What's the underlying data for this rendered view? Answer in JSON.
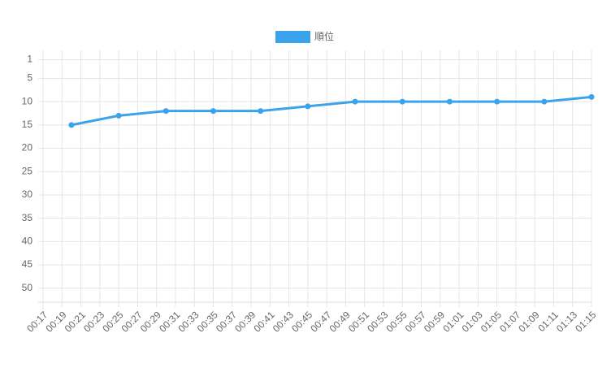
{
  "chart_data": {
    "type": "line",
    "reverse_y": true,
    "x": [
      "00:20",
      "00:25",
      "00:30",
      "00:35",
      "00:40",
      "00:45",
      "00:50",
      "00:55",
      "01:00",
      "01:05",
      "01:10",
      "01:15"
    ],
    "series": [
      {
        "name": "順位",
        "color": "#3ba3ec",
        "values": [
          15,
          13,
          12,
          12,
          12,
          11,
          10,
          10,
          10,
          10,
          10,
          9
        ]
      }
    ],
    "xlim": [
      "00:17",
      "01:15"
    ],
    "xticks": [
      "00:17",
      "00:19",
      "00:21",
      "00:23",
      "00:25",
      "00:27",
      "00:29",
      "00:31",
      "00:33",
      "00:35",
      "00:37",
      "00:39",
      "00:41",
      "00:43",
      "00:45",
      "00:47",
      "00:49",
      "00:51",
      "00:53",
      "00:55",
      "00:57",
      "00:59",
      "01:01",
      "01:03",
      "01:05",
      "01:07",
      "01:09",
      "01:11",
      "01:13",
      "01:15"
    ],
    "ylim": [
      -1,
      53
    ],
    "yticks": [
      1,
      5,
      10,
      15,
      20,
      25,
      30,
      35,
      40,
      45,
      50
    ],
    "grid": true,
    "legend": "top"
  }
}
